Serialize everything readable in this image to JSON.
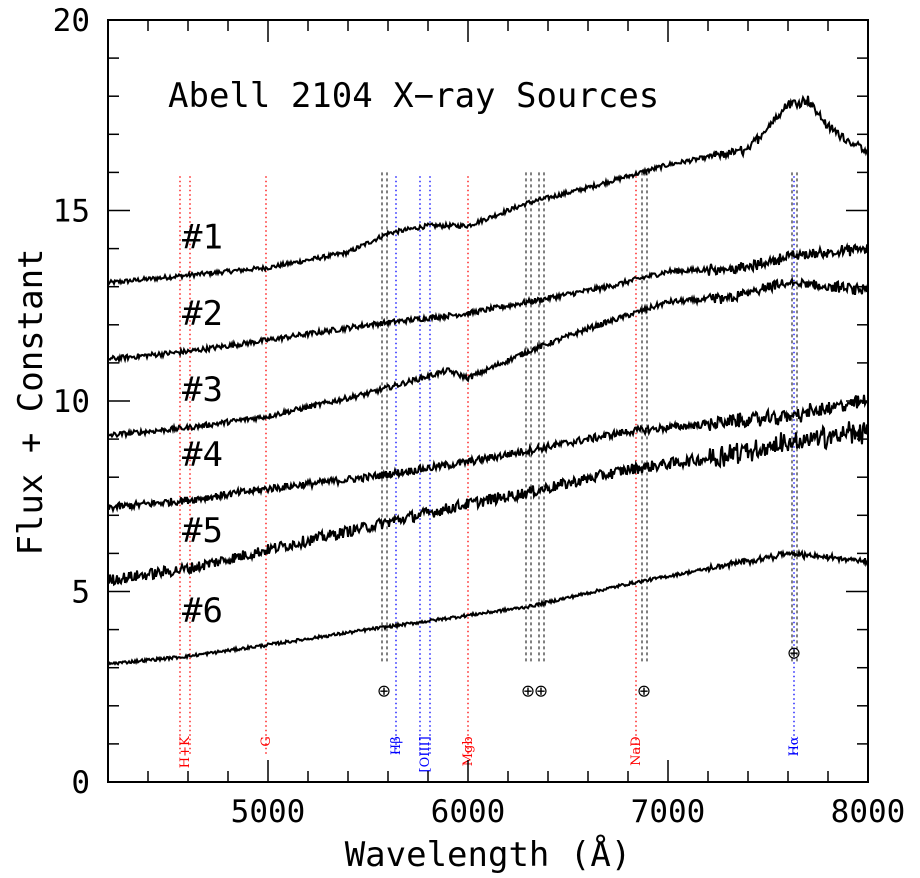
{
  "chart_data": {
    "type": "line",
    "title": "Abell 2104 X−ray Sources",
    "xlabel": "Wavelength (Å)",
    "ylabel": "Flux + Constant",
    "xlim": [
      4200,
      8000
    ],
    "ylim": [
      0,
      20
    ],
    "x_ticks": [
      5000,
      6000,
      7000,
      8000
    ],
    "y_ticks": [
      0,
      5,
      10,
      15,
      20
    ],
    "grid": false,
    "series": [
      {
        "name": "#1",
        "label_at": [
          4850,
          14.0
        ],
        "noise": 0.06,
        "points": [
          [
            4200,
            13.1
          ],
          [
            4600,
            13.3
          ],
          [
            5000,
            13.5
          ],
          [
            5400,
            13.9
          ],
          [
            5600,
            14.4
          ],
          [
            5800,
            14.6
          ],
          [
            6000,
            14.6
          ],
          [
            6300,
            15.2
          ],
          [
            6600,
            15.6
          ],
          [
            7000,
            16.2
          ],
          [
            7400,
            16.6
          ],
          [
            7600,
            17.8
          ],
          [
            7700,
            17.9
          ],
          [
            7800,
            17.2
          ],
          [
            8000,
            16.5
          ]
        ]
      },
      {
        "name": "#2",
        "label_at": [
          4850,
          12.0
        ],
        "noise": 0.07,
        "points": [
          [
            4200,
            11.1
          ],
          [
            4600,
            11.3
          ],
          [
            5000,
            11.6
          ],
          [
            5500,
            12.0
          ],
          [
            6000,
            12.3
          ],
          [
            6300,
            12.6
          ],
          [
            6700,
            13.0
          ],
          [
            7000,
            13.4
          ],
          [
            7400,
            13.5
          ],
          [
            7600,
            13.8
          ],
          [
            8000,
            14.0
          ]
        ]
      },
      {
        "name": "#3",
        "label_at": [
          4850,
          10.0
        ],
        "noise": 0.07,
        "points": [
          [
            4200,
            9.1
          ],
          [
            4600,
            9.3
          ],
          [
            5000,
            9.6
          ],
          [
            5500,
            10.2
          ],
          [
            5900,
            10.8
          ],
          [
            6000,
            10.6
          ],
          [
            6300,
            11.3
          ],
          [
            6600,
            11.9
          ],
          [
            7000,
            12.6
          ],
          [
            7300,
            12.7
          ],
          [
            7600,
            13.1
          ],
          [
            8000,
            12.9
          ]
        ]
      },
      {
        "name": "#4",
        "label_at": [
          4850,
          8.3
        ],
        "noise": 0.1,
        "points": [
          [
            4200,
            7.2
          ],
          [
            4600,
            7.4
          ],
          [
            5000,
            7.7
          ],
          [
            5500,
            8.0
          ],
          [
            6000,
            8.4
          ],
          [
            6400,
            8.8
          ],
          [
            6800,
            9.2
          ],
          [
            7200,
            9.4
          ],
          [
            7600,
            9.6
          ],
          [
            8000,
            10.0
          ]
        ]
      },
      {
        "name": "#5",
        "label_at": [
          4850,
          6.3
        ],
        "noise": 0.15,
        "points": [
          [
            4200,
            5.3
          ],
          [
            4600,
            5.6
          ],
          [
            5000,
            6.1
          ],
          [
            5500,
            6.7
          ],
          [
            6000,
            7.3
          ],
          [
            6300,
            7.6
          ],
          [
            6800,
            8.2
          ],
          [
            7200,
            8.5
          ],
          [
            7600,
            8.9
          ],
          [
            8000,
            9.2
          ]
        ]
      },
      {
        "name": "#6",
        "label_at": [
          4850,
          4.2
        ],
        "noise": 0.04,
        "points": [
          [
            4200,
            3.1
          ],
          [
            4600,
            3.3
          ],
          [
            5000,
            3.6
          ],
          [
            5500,
            4.0
          ],
          [
            5900,
            4.3
          ],
          [
            6300,
            4.6
          ],
          [
            6800,
            5.2
          ],
          [
            7200,
            5.6
          ],
          [
            7600,
            6.0
          ],
          [
            8000,
            5.8
          ]
        ]
      }
    ],
    "spectral_lines": [
      {
        "name": "H+K",
        "x": 4560,
        "x2": 4610,
        "color": "#ff0000"
      },
      {
        "name": "G",
        "x": 4990,
        "color": "#ff0000"
      },
      {
        "name": "Hβ",
        "x": 5640,
        "color": "#0000ff"
      },
      {
        "name": "[OIII]",
        "x": 5760,
        "x2": 5810,
        "color": "#0000ff"
      },
      {
        "name": "Mgb",
        "x": 6000,
        "color": "#ff0000"
      },
      {
        "name": "NaD",
        "x": 6840,
        "color": "#ff0000"
      },
      {
        "name": "Hα",
        "x": 7630,
        "color": "#0000ff"
      }
    ],
    "telluric_bands": [
      {
        "x": 5580,
        "symbol": "⊕"
      },
      {
        "x": 6300,
        "symbol": "⊕"
      },
      {
        "x": 6365,
        "symbol": "⊕"
      },
      {
        "x": 6880,
        "symbol": "⊕"
      },
      {
        "x": 7630,
        "symbol": "⊕"
      }
    ]
  }
}
